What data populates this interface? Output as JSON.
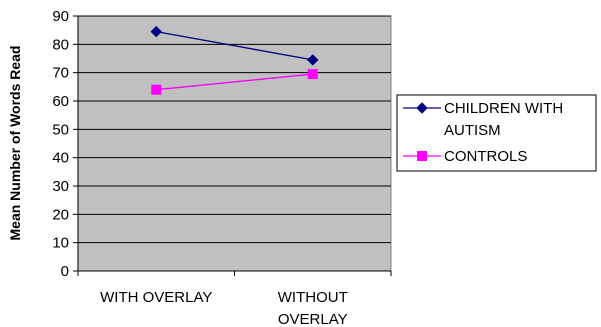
{
  "chart_data": {
    "type": "line",
    "categories": [
      [
        "WITH OVERLAY"
      ],
      [
        "WITHOUT",
        "OVERLAY"
      ]
    ],
    "series": [
      {
        "name": [
          "CHILDREN WITH",
          "AUTISM"
        ],
        "values": [
          84.5,
          74.5
        ],
        "color": "#000080",
        "marker": "diamond"
      },
      {
        "name": [
          "CONTROLS"
        ],
        "values": [
          64,
          69.5
        ],
        "color": "#FF00FF",
        "marker": "square"
      }
    ],
    "ylabel": "Mean Number of Words Read",
    "xlabel": "",
    "ylim": [
      0,
      90
    ],
    "yticks": [
      0,
      10,
      20,
      30,
      40,
      50,
      60,
      70,
      80,
      90
    ],
    "grid": true,
    "plot_background": "#C0C0C0",
    "legend_position": "right"
  }
}
